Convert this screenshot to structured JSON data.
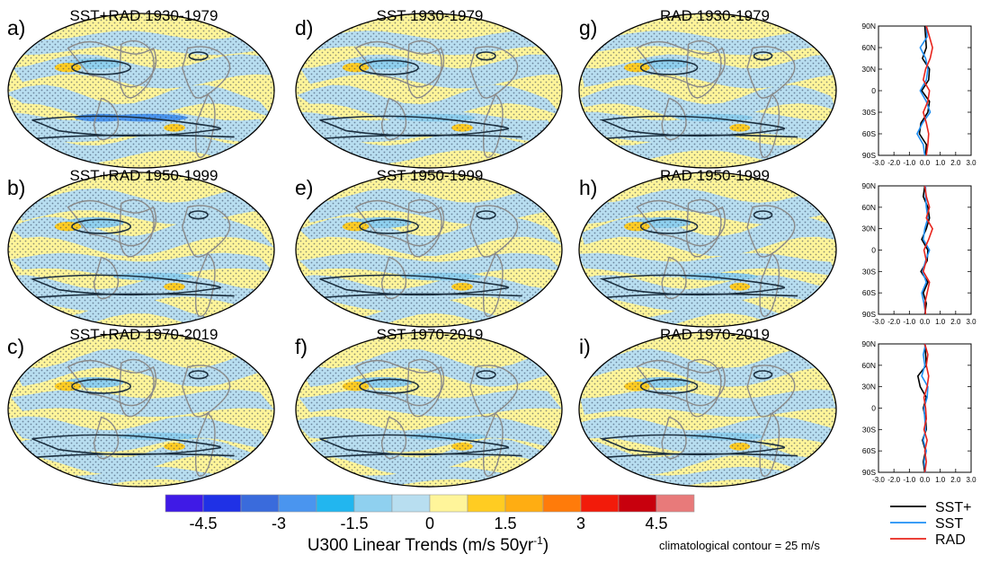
{
  "chart_data": {
    "type": "map-panels-with-profiles",
    "colorbar": {
      "colors": [
        "#3f1ae6",
        "#1f31e6",
        "#3a6bdc",
        "#4a95ef",
        "#22b6ef",
        "#8fd0ef",
        "#b8def0",
        "#fff59a",
        "#ffcc22",
        "#ffad12",
        "#ff7b0a",
        "#f21b0a",
        "#c8000d",
        "#e87a7a"
      ],
      "tick_labels": [
        "-4.5",
        "-3",
        "-1.5",
        "0",
        "1.5",
        "3",
        "4.5"
      ],
      "label": "U300 Linear Trends (m/s 50yr",
      "label_sup": "-1",
      "label_end": ")"
    },
    "contour_note": "climatological contour = 25 m/s",
    "panels": [
      {
        "letter": "a)",
        "title": "SST+RAD 1930-1979",
        "experiment": "SST+RAD",
        "period": "1930-1979"
      },
      {
        "letter": "b)",
        "title": "SST+RAD 1950-1999",
        "experiment": "SST+RAD",
        "period": "1950-1999"
      },
      {
        "letter": "c)",
        "title": "SST+RAD 1970-2019",
        "experiment": "SST+RAD",
        "period": "1970-2019"
      },
      {
        "letter": "d)",
        "title": "SST 1930-1979",
        "experiment": "SST",
        "period": "1930-1979"
      },
      {
        "letter": "e)",
        "title": "SST 1950-1999",
        "experiment": "SST",
        "period": "1950-1999"
      },
      {
        "letter": "f)",
        "title": "SST 1970-2019",
        "experiment": "SST",
        "period": "1970-2019"
      },
      {
        "letter": "g)",
        "title": "RAD 1930-1979",
        "experiment": "RAD",
        "period": "1930-1979"
      },
      {
        "letter": "h)",
        "title": "RAD 1950-1999",
        "experiment": "RAD",
        "period": "1950-1999"
      },
      {
        "letter": "i)",
        "title": "RAD 1970-2019",
        "experiment": "RAD",
        "period": "1970-2019"
      }
    ],
    "profiles": {
      "ytick_labels": [
        "90N",
        "60N",
        "30N",
        "0",
        "30S",
        "60S",
        "90S"
      ],
      "yticks": [
        90,
        60,
        30,
        0,
        -30,
        -60,
        -90
      ],
      "xtick_labels": [
        "-3.0",
        "-2.0",
        "-1.0",
        "0.0",
        "1.0",
        "2.0",
        "3.0"
      ],
      "xlim": [
        -3,
        3
      ],
      "ylim": [
        -90,
        90
      ],
      "periods": [
        {
          "period": "1930-1979",
          "series": [
            {
              "name": "SST+",
              "lat": [
                -90,
                -75,
                -60,
                -45,
                -30,
                -15,
                0,
                15,
                30,
                45,
                60,
                75,
                90
              ],
              "values": [
                0.05,
                0.1,
                -0.35,
                -0.25,
                0.2,
                0.3,
                -0.2,
                0.25,
                0.3,
                -0.15,
                0.1,
                0.05,
                0.0
              ]
            },
            {
              "name": "SST",
              "lat": [
                -90,
                -75,
                -60,
                -45,
                -30,
                -15,
                0,
                15,
                30,
                45,
                60,
                75,
                90
              ],
              "values": [
                0.0,
                -0.1,
                -0.5,
                -0.15,
                0.35,
                0.1,
                -0.3,
                0.1,
                0.2,
                0.05,
                -0.3,
                0.15,
                0.1
              ]
            },
            {
              "name": "RAD",
              "lat": [
                -90,
                -75,
                -60,
                -45,
                -30,
                -15,
                0,
                15,
                30,
                45,
                60,
                75,
                90
              ],
              "values": [
                0.1,
                0.2,
                0.25,
                0.1,
                -0.1,
                0.2,
                0.3,
                -0.1,
                0.05,
                0.35,
                0.5,
                0.3,
                0.1
              ]
            }
          ]
        },
        {
          "period": "1950-1999",
          "series": [
            {
              "name": "SST+",
              "lat": [
                -90,
                -75,
                -60,
                -45,
                -30,
                -15,
                0,
                15,
                30,
                45,
                60,
                75,
                90
              ],
              "values": [
                0.0,
                0.1,
                -0.1,
                0.2,
                -0.25,
                0.15,
                0.2,
                -0.2,
                0.1,
                0.3,
                0.2,
                -0.1,
                0.0
              ]
            },
            {
              "name": "SST",
              "lat": [
                -90,
                -75,
                -60,
                -45,
                -30,
                -15,
                0,
                15,
                30,
                45,
                60,
                75,
                90
              ],
              "values": [
                0.05,
                -0.05,
                -0.2,
                0.1,
                -0.15,
                0.05,
                0.3,
                -0.1,
                0.0,
                0.2,
                0.1,
                0.05,
                0.05
              ]
            },
            {
              "name": "RAD",
              "lat": [
                -90,
                -75,
                -60,
                -45,
                -30,
                -15,
                0,
                15,
                30,
                45,
                60,
                75,
                90
              ],
              "values": [
                0.05,
                0.0,
                0.15,
                0.3,
                -0.1,
                0.1,
                -0.05,
                0.25,
                0.5,
                0.1,
                0.3,
                0.1,
                0.0
              ]
            }
          ]
        },
        {
          "period": "1970-2019",
          "series": [
            {
              "name": "SST+",
              "lat": [
                -90,
                -75,
                -60,
                -45,
                -30,
                -15,
                0,
                15,
                30,
                45,
                60,
                75,
                90
              ],
              "values": [
                0.0,
                -0.1,
                0.05,
                -0.15,
                0.1,
                0.05,
                -0.1,
                0.1,
                -0.3,
                -0.45,
                0.1,
                0.05,
                0.0
              ]
            },
            {
              "name": "SST",
              "lat": [
                -90,
                -75,
                -60,
                -45,
                -30,
                -15,
                0,
                15,
                30,
                45,
                60,
                75,
                90
              ],
              "values": [
                0.05,
                -0.05,
                0.1,
                -0.1,
                0.05,
                0.0,
                -0.05,
                0.15,
                0.2,
                -0.2,
                0.0,
                -0.1,
                0.05
              ]
            },
            {
              "name": "RAD",
              "lat": [
                -90,
                -75,
                -60,
                -45,
                -30,
                -15,
                0,
                15,
                30,
                45,
                60,
                75,
                90
              ],
              "values": [
                0.0,
                0.1,
                0.0,
                0.15,
                -0.05,
                0.1,
                0.05,
                -0.05,
                0.15,
                0.25,
                0.1,
                0.2,
                0.0
              ]
            }
          ]
        }
      ]
    },
    "legend": [
      {
        "name": "SST+",
        "color": "#000000"
      },
      {
        "name": "SST",
        "color": "#1e8ff5"
      },
      {
        "name": "RAD",
        "color": "#e8241c"
      }
    ]
  }
}
